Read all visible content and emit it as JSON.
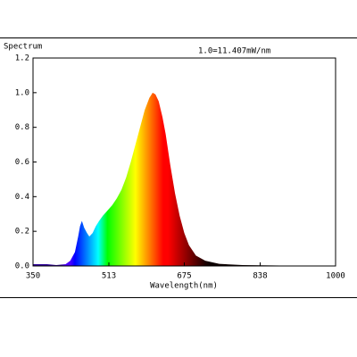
{
  "chart_data": {
    "type": "area",
    "title": "Spectrum",
    "annotation": "1.0=11.407mW/nm",
    "x_label": "Wavelength(nm)",
    "x": [
      350,
      380,
      400,
      420,
      430,
      440,
      447,
      451,
      455,
      460,
      466,
      471,
      478,
      485,
      492,
      500,
      510,
      520,
      530,
      540,
      550,
      560,
      570,
      580,
      590,
      600,
      607,
      613,
      620,
      628,
      635,
      645,
      655,
      665,
      675,
      685,
      700,
      720,
      750,
      800,
      900,
      1000
    ],
    "values": [
      0.01,
      0.01,
      0.005,
      0.01,
      0.03,
      0.08,
      0.17,
      0.23,
      0.26,
      0.22,
      0.19,
      0.17,
      0.19,
      0.23,
      0.26,
      0.29,
      0.32,
      0.35,
      0.39,
      0.44,
      0.51,
      0.6,
      0.7,
      0.8,
      0.9,
      0.97,
      1.0,
      0.99,
      0.95,
      0.86,
      0.76,
      0.58,
      0.42,
      0.29,
      0.19,
      0.12,
      0.06,
      0.03,
      0.012,
      0.005,
      0.002,
      0.0
    ],
    "xlim": [
      350,
      1000
    ],
    "ylim": [
      0,
      1.2
    ],
    "xticks": [
      350,
      513,
      675,
      838,
      1000
    ],
    "yticks": [
      {
        "value": 0,
        "label": "0.0"
      },
      {
        "value": 0.2,
        "label": "0.2"
      },
      {
        "value": 0.4,
        "label": "0.4"
      },
      {
        "value": 0.6,
        "label": "0.6"
      },
      {
        "value": 0.8,
        "label": "0.8"
      },
      {
        "value": 1.0,
        "label": "1.0"
      },
      {
        "value": 1.2,
        "label": "1.2"
      }
    ]
  }
}
